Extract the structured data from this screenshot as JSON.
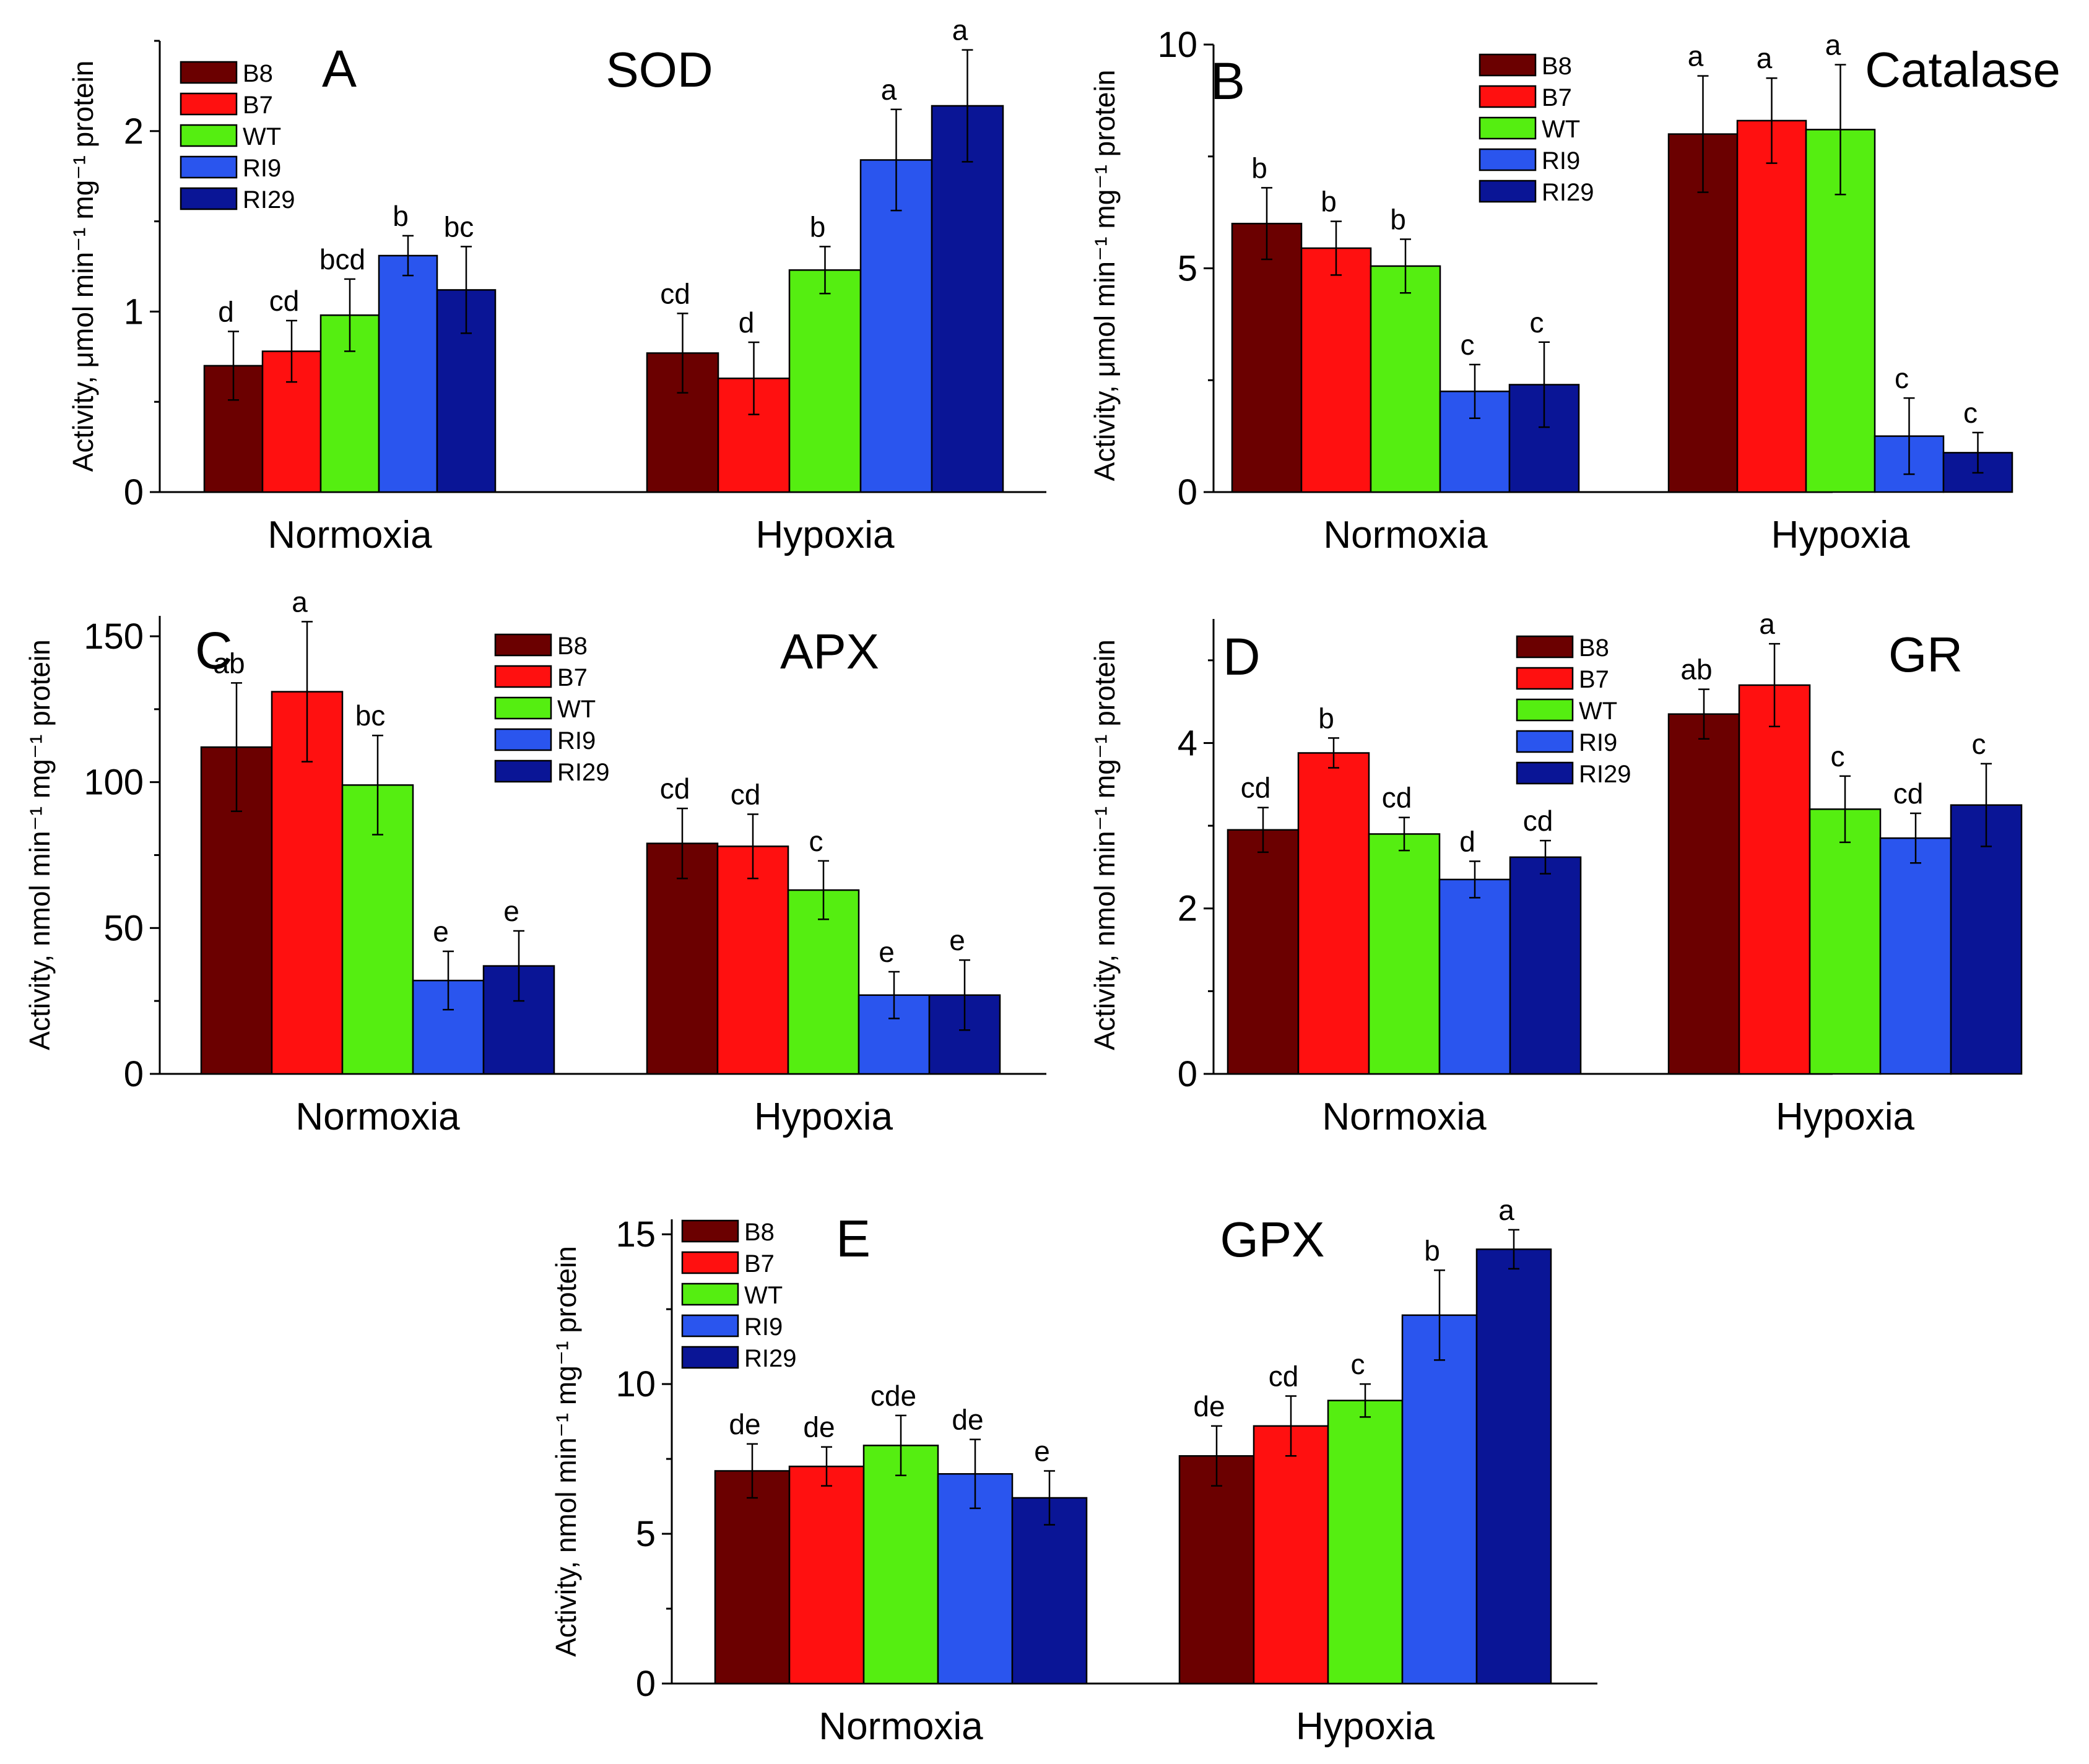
{
  "chart_data": [
    {
      "type": "bar",
      "panel_label": "A",
      "title": "SOD",
      "ylabel": "Activity, μmol min⁻¹ mg⁻¹ protein",
      "xlabel": "",
      "categories": [
        "Normoxia",
        "Hypoxia"
      ],
      "ylim": [
        0,
        2.5
      ],
      "yticks": [
        0,
        1,
        2
      ],
      "legend_position": "top-left",
      "series": [
        {
          "name": "B8",
          "color": "#6b0000",
          "values": [
            0.7,
            0.77
          ],
          "errors": [
            0.19,
            0.22
          ],
          "letters": [
            "d",
            "cd"
          ]
        },
        {
          "name": "B7",
          "color": "#ff1010",
          "values": [
            0.78,
            0.63
          ],
          "errors": [
            0.17,
            0.2
          ],
          "letters": [
            "cd",
            "d"
          ]
        },
        {
          "name": "WT",
          "color": "#55ee11",
          "values": [
            0.98,
            1.23
          ],
          "errors": [
            0.2,
            0.13
          ],
          "letters": [
            "bcd",
            "b"
          ]
        },
        {
          "name": "RI9",
          "color": "#2a55ee",
          "values": [
            1.31,
            1.84
          ],
          "errors": [
            0.11,
            0.28
          ],
          "letters": [
            "b",
            "a"
          ]
        },
        {
          "name": "RI29",
          "color": "#0a1596",
          "values": [
            1.12,
            2.14
          ],
          "errors": [
            0.24,
            0.31
          ],
          "letters": [
            "bc",
            "a"
          ]
        }
      ]
    },
    {
      "type": "bar",
      "panel_label": "B",
      "title": "Catalase",
      "ylabel": "Activity, μmol min⁻¹ mg⁻¹ protein",
      "xlabel": "",
      "categories": [
        "Normoxia",
        "Hypoxia"
      ],
      "ylim": [
        0,
        10
      ],
      "yticks": [
        0,
        5,
        10
      ],
      "legend_position": "top-center",
      "series": [
        {
          "name": "B8",
          "color": "#6b0000",
          "values": [
            6.0,
            8.0
          ],
          "errors": [
            0.8,
            1.3
          ],
          "letters": [
            "b",
            "a"
          ]
        },
        {
          "name": "B7",
          "color": "#ff1010",
          "values": [
            5.45,
            8.3
          ],
          "errors": [
            0.6,
            0.95
          ],
          "letters": [
            "b",
            "a"
          ]
        },
        {
          "name": "WT",
          "color": "#55ee11",
          "values": [
            5.05,
            8.1
          ],
          "errors": [
            0.6,
            1.45
          ],
          "letters": [
            "b",
            "a"
          ]
        },
        {
          "name": "RI9",
          "color": "#2a55ee",
          "values": [
            2.25,
            1.25
          ],
          "errors": [
            0.6,
            0.85
          ],
          "letters": [
            "c",
            "c"
          ]
        },
        {
          "name": "RI29",
          "color": "#0a1596",
          "values": [
            2.4,
            0.88
          ],
          "errors": [
            0.95,
            0.45
          ],
          "letters": [
            "c",
            "c"
          ]
        }
      ]
    },
    {
      "type": "bar",
      "panel_label": "C",
      "title": "APX",
      "ylabel": "Activity, nmol min⁻¹ mg⁻¹ protein",
      "xlabel": "",
      "categories": [
        "Normoxia",
        "Hypoxia"
      ],
      "ylim": [
        0,
        157
      ],
      "yticks": [
        0,
        50,
        100,
        150
      ],
      "legend_position": "top-center",
      "series": [
        {
          "name": "B8",
          "color": "#6b0000",
          "values": [
            112,
            79
          ],
          "errors": [
            22,
            12
          ],
          "letters": [
            "ab",
            "cd"
          ]
        },
        {
          "name": "B7",
          "color": "#ff1010",
          "values": [
            131,
            78
          ],
          "errors": [
            24,
            11
          ],
          "letters": [
            "a",
            "cd"
          ]
        },
        {
          "name": "WT",
          "color": "#55ee11",
          "values": [
            99,
            63
          ],
          "errors": [
            17,
            10
          ],
          "letters": [
            "bc",
            "c"
          ]
        },
        {
          "name": "RI9",
          "color": "#2a55ee",
          "values": [
            32,
            27
          ],
          "errors": [
            10,
            8
          ],
          "letters": [
            "e",
            "e"
          ]
        },
        {
          "name": "RI29",
          "color": "#0a1596",
          "values": [
            37,
            27
          ],
          "errors": [
            12,
            12
          ],
          "letters": [
            "e",
            "e"
          ]
        }
      ]
    },
    {
      "type": "bar",
      "panel_label": "D",
      "title": "GR",
      "ylabel": "Activity, nmol min⁻¹ mg⁻¹ protein",
      "xlabel": "",
      "categories": [
        "Normoxia",
        "Hypoxia"
      ],
      "ylim": [
        0,
        5.5
      ],
      "yticks": [
        0,
        2,
        4
      ],
      "legend_position": "top-center",
      "series": [
        {
          "name": "B8",
          "color": "#6b0000",
          "values": [
            2.95,
            4.35
          ],
          "errors": [
            0.27,
            0.3
          ],
          "letters": [
            "cd",
            "ab"
          ]
        },
        {
          "name": "B7",
          "color": "#ff1010",
          "values": [
            3.88,
            4.7
          ],
          "errors": [
            0.18,
            0.5
          ],
          "letters": [
            "b",
            "a"
          ]
        },
        {
          "name": "WT",
          "color": "#55ee11",
          "values": [
            2.9,
            3.2
          ],
          "errors": [
            0.2,
            0.4
          ],
          "letters": [
            "cd",
            "c"
          ]
        },
        {
          "name": "RI9",
          "color": "#2a55ee",
          "values": [
            2.35,
            2.85
          ],
          "errors": [
            0.22,
            0.3
          ],
          "letters": [
            "d",
            "cd"
          ]
        },
        {
          "name": "RI29",
          "color": "#0a1596",
          "values": [
            2.62,
            3.25
          ],
          "errors": [
            0.2,
            0.5
          ],
          "letters": [
            "cd",
            "c"
          ]
        }
      ]
    },
    {
      "type": "bar",
      "panel_label": "E",
      "title": "GPX",
      "ylabel": "Activity, nmol min⁻¹ mg⁻¹ protein",
      "xlabel": "",
      "categories": [
        "Normoxia",
        "Hypoxia"
      ],
      "ylim": [
        0,
        15.5
      ],
      "yticks": [
        0,
        5,
        10,
        15
      ],
      "legend_position": "top-left",
      "series": [
        {
          "name": "B8",
          "color": "#6b0000",
          "values": [
            7.1,
            7.6
          ],
          "errors": [
            0.9,
            1.0
          ],
          "letters": [
            "de",
            "de"
          ]
        },
        {
          "name": "B7",
          "color": "#ff1010",
          "values": [
            7.25,
            8.6
          ],
          "errors": [
            0.65,
            1.0
          ],
          "letters": [
            "de",
            "cd"
          ]
        },
        {
          "name": "WT",
          "color": "#55ee11",
          "values": [
            7.95,
            9.45
          ],
          "errors": [
            1.0,
            0.55
          ],
          "letters": [
            "cde",
            "c"
          ]
        },
        {
          "name": "RI9",
          "color": "#2a55ee",
          "values": [
            7.0,
            12.3
          ],
          "errors": [
            1.15,
            1.5
          ],
          "letters": [
            "de",
            "b"
          ]
        },
        {
          "name": "RI29",
          "color": "#0a1596",
          "values": [
            6.2,
            14.5
          ],
          "errors": [
            0.9,
            0.65
          ],
          "letters": [
            "e",
            "a"
          ]
        }
      ]
    }
  ]
}
